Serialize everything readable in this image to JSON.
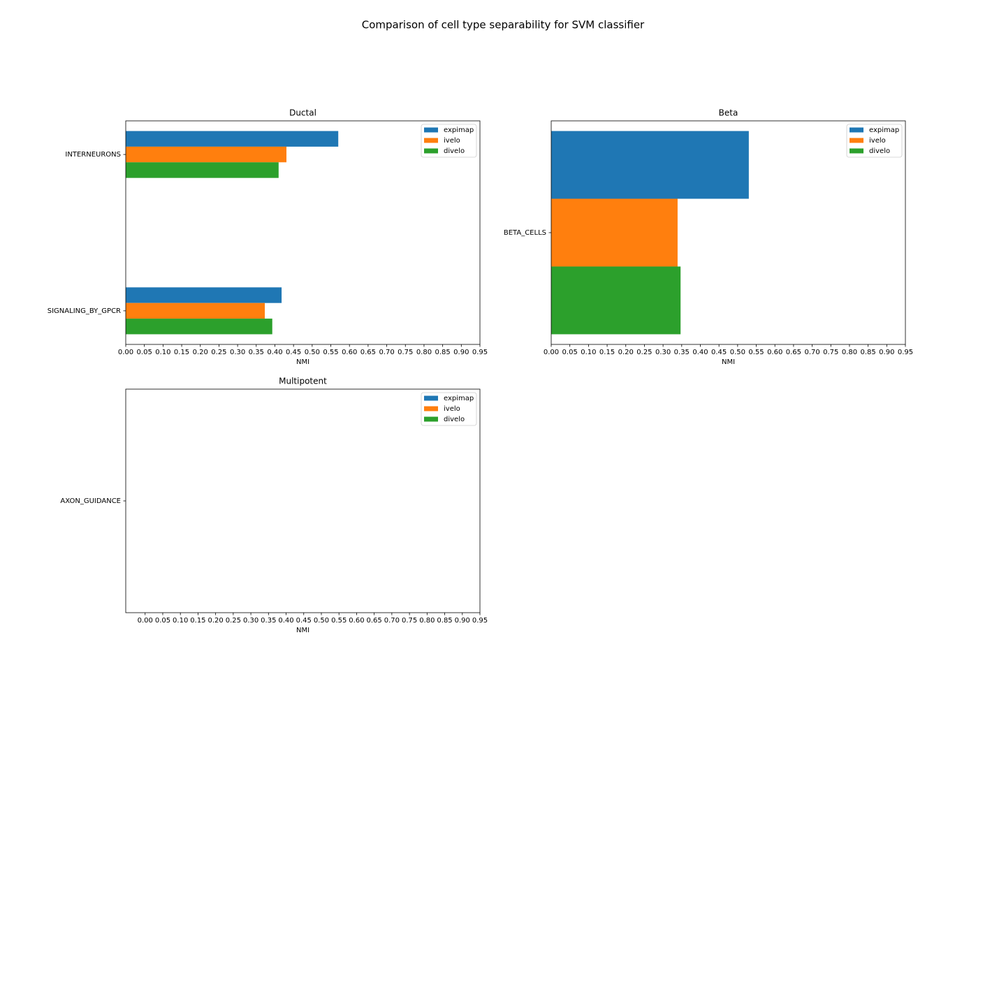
{
  "title": "Comparison of cell type separability for SVM classifier",
  "chart_data": [
    {
      "type": "barh",
      "title": "Ductal",
      "xlabel": "NMI",
      "categories": [
        "SIGNALING_BY_GPCR",
        "INTERNEURONS"
      ],
      "series": [
        {
          "name": "expimap",
          "color": "#1f77b4",
          "values": [
            0.418,
            0.57
          ]
        },
        {
          "name": "ivelo",
          "color": "#ff7f0e",
          "values": [
            0.373,
            0.431
          ]
        },
        {
          "name": "divelo",
          "color": "#2ca02c",
          "values": [
            0.393,
            0.41
          ]
        }
      ],
      "xlim": [
        0,
        0.95
      ],
      "xticks": [
        {
          "value": 0,
          "label": "0.00"
        },
        {
          "value": 0.05,
          "label": "0.05"
        },
        {
          "value": 0.1,
          "label": "0.10"
        },
        {
          "value": 0.15,
          "label": "0.15"
        },
        {
          "value": 0.2,
          "label": "0.20"
        },
        {
          "value": 0.25,
          "label": "0.25"
        },
        {
          "value": 0.3,
          "label": "0.30"
        },
        {
          "value": 0.35,
          "label": "0.35"
        },
        {
          "value": 0.4,
          "label": "0.40"
        },
        {
          "value": 0.45,
          "label": "0.45"
        },
        {
          "value": 0.5,
          "label": "0.50"
        },
        {
          "value": 0.55,
          "label": "0.55"
        },
        {
          "value": 0.6,
          "label": "0.60"
        },
        {
          "value": 0.65,
          "label": "0.65"
        },
        {
          "value": 0.7,
          "label": "0.70"
        },
        {
          "value": 0.75,
          "label": "0.75"
        },
        {
          "value": 0.8,
          "label": "0.80"
        },
        {
          "value": 0.85,
          "label": "0.85"
        },
        {
          "value": 0.9,
          "label": "0.90"
        },
        {
          "value": 0.95,
          "label": "0.95"
        }
      ],
      "legend": "upper right",
      "grid": false
    },
    {
      "type": "barh",
      "title": "Beta",
      "xlabel": "NMI",
      "categories": [
        "BETA_CELLS"
      ],
      "series": [
        {
          "name": "expimap",
          "color": "#1f77b4",
          "values": [
            0.53
          ]
        },
        {
          "name": "ivelo",
          "color": "#ff7f0e",
          "values": [
            0.339
          ]
        },
        {
          "name": "divelo",
          "color": "#2ca02c",
          "values": [
            0.347
          ]
        }
      ],
      "xlim": [
        0,
        0.95
      ],
      "xticks": [
        {
          "value": 0,
          "label": "0.00"
        },
        {
          "value": 0.05,
          "label": "0.05"
        },
        {
          "value": 0.1,
          "label": "0.10"
        },
        {
          "value": 0.15,
          "label": "0.15"
        },
        {
          "value": 0.2,
          "label": "0.20"
        },
        {
          "value": 0.25,
          "label": "0.25"
        },
        {
          "value": 0.3,
          "label": "0.30"
        },
        {
          "value": 0.35,
          "label": "0.35"
        },
        {
          "value": 0.4,
          "label": "0.40"
        },
        {
          "value": 0.45,
          "label": "0.45"
        },
        {
          "value": 0.5,
          "label": "0.50"
        },
        {
          "value": 0.55,
          "label": "0.55"
        },
        {
          "value": 0.6,
          "label": "0.60"
        },
        {
          "value": 0.65,
          "label": "0.65"
        },
        {
          "value": 0.7,
          "label": "0.70"
        },
        {
          "value": 0.75,
          "label": "0.75"
        },
        {
          "value": 0.8,
          "label": "0.80"
        },
        {
          "value": 0.85,
          "label": "0.85"
        },
        {
          "value": 0.9,
          "label": "0.90"
        },
        {
          "value": 0.95,
          "label": "0.95"
        }
      ],
      "legend": "upper right",
      "grid": false
    },
    {
      "type": "barh",
      "title": "Multipotent",
      "xlabel": "NMI",
      "categories": [
        "AXON_GUIDANCE"
      ],
      "series": [
        {
          "name": "expimap",
          "color": "#1f77b4",
          "values": [
            null
          ]
        },
        {
          "name": "ivelo",
          "color": "#ff7f0e",
          "values": [
            null
          ]
        },
        {
          "name": "divelo",
          "color": "#2ca02c",
          "values": [
            null
          ]
        }
      ],
      "xlim": [
        -0.055,
        0.95
      ],
      "xticks": [
        {
          "value": 0,
          "label": "0.00"
        },
        {
          "value": 0.05,
          "label": "0.05"
        },
        {
          "value": 0.1,
          "label": "0.10"
        },
        {
          "value": 0.15,
          "label": "0.15"
        },
        {
          "value": 0.2,
          "label": "0.20"
        },
        {
          "value": 0.25,
          "label": "0.25"
        },
        {
          "value": 0.3,
          "label": "0.30"
        },
        {
          "value": 0.35,
          "label": "0.35"
        },
        {
          "value": 0.4,
          "label": "0.40"
        },
        {
          "value": 0.45,
          "label": "0.45"
        },
        {
          "value": 0.5,
          "label": "0.50"
        },
        {
          "value": 0.55,
          "label": "0.55"
        },
        {
          "value": 0.6,
          "label": "0.60"
        },
        {
          "value": 0.65,
          "label": "0.65"
        },
        {
          "value": 0.7,
          "label": "0.70"
        },
        {
          "value": 0.75,
          "label": "0.75"
        },
        {
          "value": 0.8,
          "label": "0.80"
        },
        {
          "value": 0.85,
          "label": "0.85"
        },
        {
          "value": 0.9,
          "label": "0.90"
        },
        {
          "value": 0.95,
          "label": "0.95"
        }
      ],
      "legend": "upper right",
      "grid": false
    }
  ]
}
